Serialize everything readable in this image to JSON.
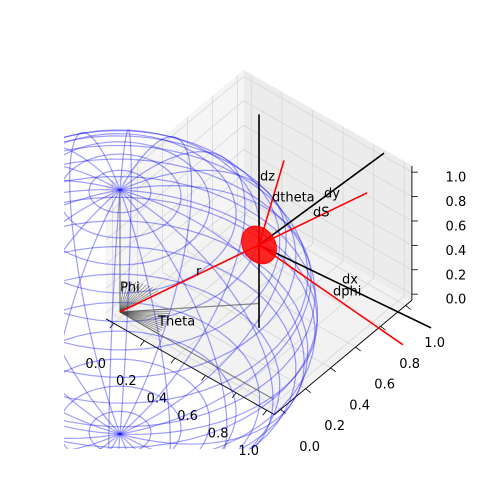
{
  "chart_data": {
    "type": "3d-line",
    "xlim": [
      -0.05,
      1.05
    ],
    "ylim": [
      -0.05,
      1.05
    ],
    "zlim": [
      -0.05,
      1.05
    ],
    "xticks": [
      {
        "value": 0,
        "label": "0.0"
      },
      0.2,
      0.4,
      0.6,
      0.8,
      {
        "value": 1,
        "label": "1.0"
      }
    ],
    "yticks": [
      {
        "value": 0,
        "label": "0.0"
      },
      0.2,
      0.4,
      0.6,
      0.8,
      {
        "value": 1,
        "label": "1.0"
      }
    ],
    "zticks": [
      {
        "value": 0,
        "label": "0.0"
      },
      0.2,
      0.4,
      0.6,
      0.8,
      {
        "value": 1,
        "label": "1.0"
      }
    ],
    "grid": true,
    "sphere": {
      "center": [
        0,
        0,
        0
      ],
      "radius": 1,
      "color": "#0000ff"
    },
    "point": {
      "coords": [
        0.5,
        0.5,
        0.48
      ],
      "color": "#ff0000"
    },
    "segments": [
      {
        "color": "#555555",
        "start": [
          0,
          0,
          0
        ],
        "end": [
          0,
          0,
          1
        ]
      },
      {
        "color": "#555555",
        "start": [
          0,
          0,
          0
        ],
        "end": [
          0.5,
          0.5,
          0
        ]
      },
      {
        "color": "#555555",
        "start": [
          0,
          0,
          0
        ],
        "end": [
          1,
          0,
          0
        ]
      },
      {
        "color": "#000000",
        "start": [
          0.5,
          0.5,
          -0.2
        ],
        "end": [
          0.5,
          0.5,
          1.55
        ]
      },
      {
        "color": "#000000",
        "start": [
          0.5,
          0.5,
          0.48
        ],
        "end": [
          0.5,
          1.5,
          0.38
        ]
      },
      {
        "color": "#000000",
        "start": [
          0.5,
          0.5,
          0.48
        ],
        "end": [
          1.555,
          0.585,
          0.48
        ]
      },
      {
        "color": "#ff0000",
        "start": [
          0,
          0,
          0
        ],
        "end": [
          0.889,
          0.889,
          0.853
        ]
      },
      {
        "color": "#ff0000",
        "start": [
          0.5,
          0.5,
          0.48
        ],
        "end": [
          0.59,
          0.59,
          1.16
        ]
      },
      {
        "color": "#ff0000",
        "start": [
          0.5,
          0.5,
          0.48
        ],
        "end": [
          1.525,
          0.397,
          0.48
        ]
      }
    ],
    "annotations": [
      "dz",
      "dtheta",
      "dy",
      "dS",
      "dx",
      "dphi",
      "r",
      "Phi",
      "Theta"
    ]
  }
}
